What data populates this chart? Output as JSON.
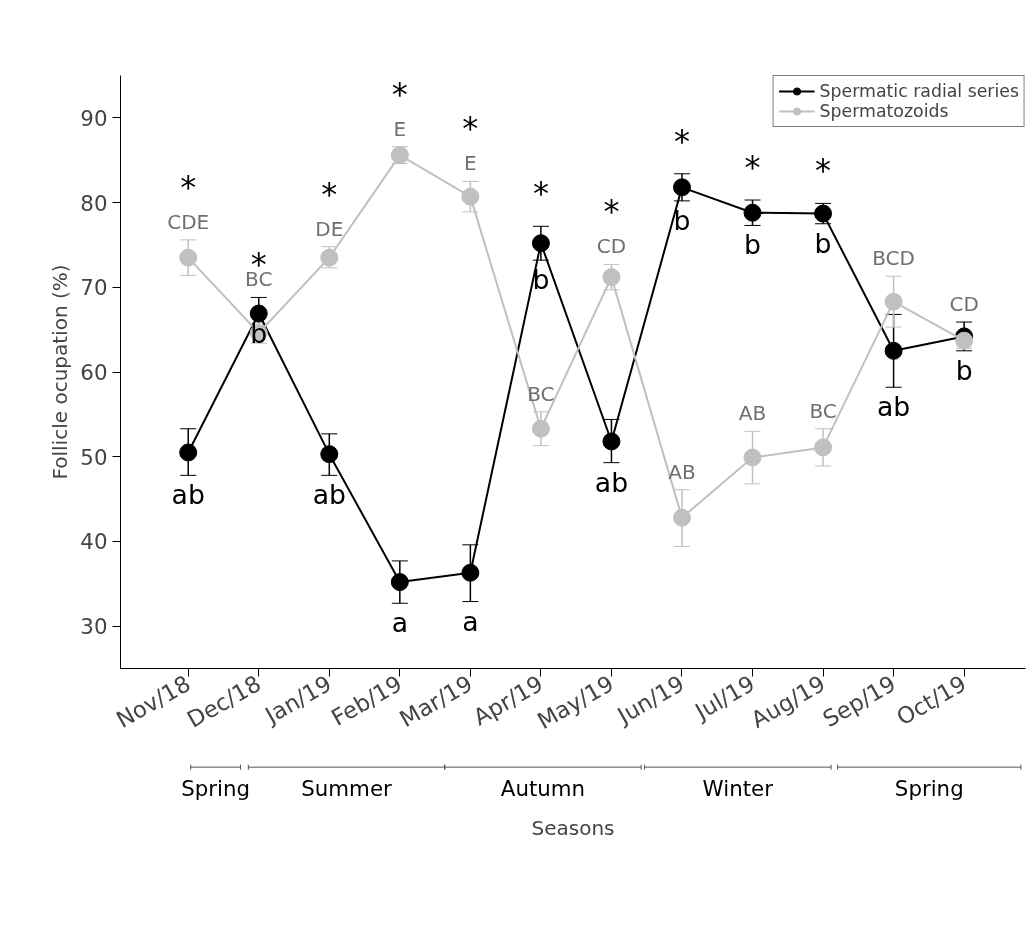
{
  "chart_data": {
    "type": "line",
    "xlabel": "Seasons",
    "ylabel": "Follicle ocupation (%)",
    "categories": [
      "Nov/18",
      "Dec/18",
      "Jan/19",
      "Feb/19",
      "Mar/19",
      "Apr/19",
      "May/19",
      "Jun/19",
      "Jul/19",
      "Aug/19",
      "Sep/19",
      "Oct/19"
    ],
    "series": [
      {
        "name": "Spermatic radial series",
        "color": "#000000",
        "values": [
          50.5,
          66.9,
          50.3,
          35.2,
          36.3,
          75.2,
          51.8,
          81.8,
          78.8,
          78.7,
          62.5,
          64.2
        ],
        "errors": [
          [
            47.8,
            53.3
          ],
          [
            66.9,
            68.8
          ],
          [
            47.8,
            52.7
          ],
          [
            32.7,
            37.7
          ],
          [
            32.9,
            39.6
          ],
          [
            73.2,
            77.2
          ],
          [
            49.3,
            54.4
          ],
          [
            80.2,
            83.4
          ],
          [
            77.3,
            80.3
          ],
          [
            77.5,
            79.9
          ],
          [
            58.2,
            66.8
          ],
          [
            62.5,
            65.9
          ]
        ],
        "value_labels": [
          "ab",
          "b",
          "ab",
          "a",
          "a",
          "b",
          "ab",
          "b",
          "b",
          "b",
          "ab",
          "b"
        ]
      },
      {
        "name": "Spermatozoids",
        "color": "#c0c0c0",
        "values": [
          73.5,
          64.6,
          73.5,
          85.6,
          80.7,
          53.3,
          71.2,
          42.8,
          49.9,
          51.1,
          68.3,
          63.7
        ],
        "errors": [
          [
            71.4,
            75.6
          ],
          [
            63.4,
            65.8
          ],
          [
            72.3,
            74.8
          ],
          [
            84.6,
            86.6
          ],
          [
            78.9,
            82.5
          ],
          [
            51.3,
            55.3
          ],
          [
            69.7,
            72.7
          ],
          [
            39.4,
            46.1
          ],
          [
            46.8,
            53.0
          ],
          [
            48.9,
            53.3
          ],
          [
            65.3,
            71.3
          ],
          [
            62.8,
            64.6
          ]
        ],
        "value_labels": [
          "CDE",
          "BC",
          "DE",
          "E",
          "E",
          "BC",
          "CD",
          "AB",
          "AB",
          "BC",
          "BCD",
          "CD"
        ]
      }
    ],
    "annotations": [
      "*",
      "*",
      "*",
      "*",
      "*",
      "*",
      "*",
      "*",
      "*",
      "*",
      "Spring",
      "Summer",
      "Autumn",
      "Winter",
      "Spring"
    ],
    "ylim": [
      25,
      95
    ],
    "yticks": [
      30,
      40,
      50,
      60,
      70,
      80,
      90
    ],
    "marker": "circle",
    "legend": "top right",
    "grid": false
  }
}
